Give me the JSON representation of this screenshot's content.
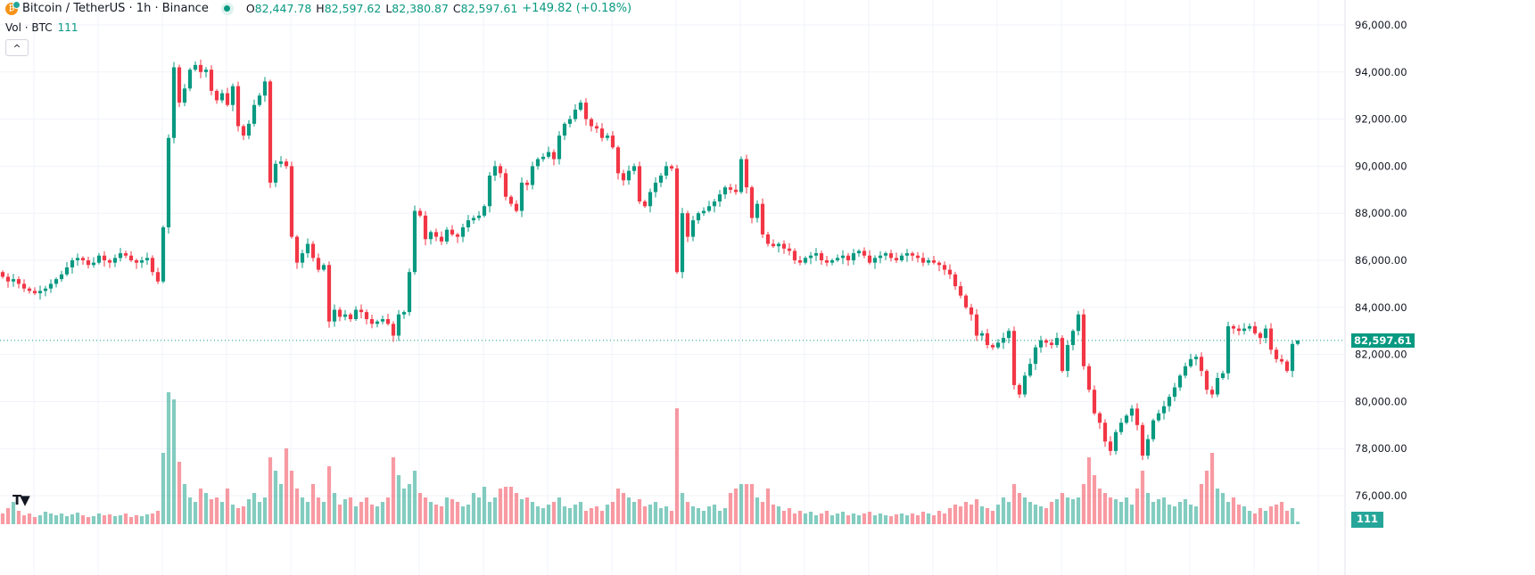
{
  "header": {
    "symbol_title": "Bitcoin / TetherUS · 1h · Binance",
    "symbol_icon": "bitcoin-icon",
    "open_label": "O",
    "open": "82,447.78",
    "high_label": "H",
    "high": "82,597.62",
    "low_label": "L",
    "low": "82,380.87",
    "close_label": "C",
    "close": "82,597.61",
    "change": "+149.82 (+0.18%)"
  },
  "volume_legend": {
    "label": "Vol · BTC",
    "value": "111"
  },
  "collapse_button": "^",
  "logo": "TV",
  "price_tag": "82,597.61",
  "volume_tag": "111",
  "colors": {
    "up": "#089981",
    "down": "#F23645",
    "grid": "#f0f3fa"
  },
  "chart_data": {
    "type": "candlestick",
    "interval": "1h",
    "ylim": [
      76000,
      96000
    ],
    "y_tick_labels": [
      "96,000.00",
      "94,000.00",
      "92,000.00",
      "90,000.00",
      "88,000.00",
      "86,000.00",
      "84,000.00",
      "82,000.00",
      "80,000.00",
      "78,000.00",
      "76,000.00"
    ],
    "y_ticks": [
      96000,
      94000,
      92000,
      90000,
      88000,
      86000,
      84000,
      82000,
      80000,
      78000,
      76000
    ],
    "grid": true,
    "first_open": 85500,
    "last_candle": {
      "open": 82447.78,
      "high": 82597.62,
      "low": 82380.87,
      "close": 82597.61
    },
    "closes": [
      85300,
      85100,
      85200,
      85000,
      84800,
      84700,
      84600,
      84700,
      84800,
      85000,
      85200,
      85400,
      85700,
      86000,
      86100,
      86000,
      85800,
      85900,
      86200,
      86000,
      85900,
      86100,
      86300,
      86200,
      86000,
      85900,
      86000,
      86100,
      85500,
      85100,
      87400,
      91200,
      94200,
      92700,
      93300,
      94100,
      94300,
      94000,
      94100,
      93200,
      92800,
      93100,
      92600,
      93400,
      91700,
      91300,
      91800,
      92600,
      93000,
      93600,
      89300,
      90100,
      90200,
      90000,
      87000,
      85900,
      86300,
      86700,
      86100,
      85600,
      85800,
      83400,
      83900,
      83600,
      83700,
      83500,
      83900,
      83800,
      83500,
      83300,
      83400,
      83500,
      83300,
      82800,
      83700,
      83800,
      85500,
      88100,
      87900,
      86900,
      87200,
      87000,
      86800,
      87300,
      87100,
      87000,
      87400,
      87700,
      87800,
      87900,
      88300,
      89600,
      90000,
      89700,
      88700,
      88400,
      88100,
      89300,
      89200,
      90000,
      90300,
      90400,
      90600,
      90300,
      91300,
      91800,
      92000,
      92400,
      92700,
      92000,
      91700,
      91600,
      91200,
      91300,
      90800,
      89700,
      89400,
      89800,
      90000,
      88500,
      88300,
      88900,
      89300,
      89600,
      90000,
      89900,
      85500,
      88000,
      87000,
      87700,
      88000,
      88100,
      88300,
      88500,
      88800,
      89100,
      89000,
      88900,
      90300,
      89100,
      87800,
      88400,
      87100,
      86700,
      86600,
      86700,
      86500,
      86400,
      86000,
      85900,
      86100,
      86200,
      86300,
      86000,
      85900,
      86000,
      86100,
      86200,
      86000,
      86300,
      86400,
      86200,
      85900,
      86100,
      86200,
      86300,
      86100,
      86000,
      86200,
      86300,
      86200,
      86100,
      85900,
      86000,
      85900,
      85800,
      85600,
      85400,
      84900,
      84500,
      84000,
      83700,
      82800,
      82900,
      82400,
      82300,
      82500,
      82700,
      83000,
      80700,
      80300,
      81100,
      81600,
      82300,
      82600,
      82500,
      82400,
      82700,
      81300,
      82400,
      83000,
      83700,
      81500,
      80500,
      79500,
      79100,
      78300,
      77900,
      78700,
      79100,
      79400,
      79700,
      79000,
      77700,
      78400,
      79200,
      79500,
      79800,
      80200,
      80600,
      81100,
      81500,
      81800,
      81900,
      81300,
      80500,
      80300,
      81000,
      81200,
      83200,
      83100,
      83000,
      83100,
      83200,
      82900,
      82700,
      83100,
      82200,
      81800,
      81700,
      81300,
      82447.78,
      82597.61
    ],
    "volumes": [
      480,
      720,
      1000,
      600,
      400,
      480,
      320,
      400,
      560,
      480,
      400,
      480,
      360,
      440,
      520,
      400,
      320,
      360,
      480,
      400,
      440,
      360,
      400,
      480,
      320,
      400,
      360,
      440,
      480,
      600,
      3200,
      5920,
      5600,
      2800,
      1800,
      1200,
      1000,
      1600,
      1400,
      1120,
      1200,
      1000,
      1600,
      880,
      720,
      800,
      1120,
      1400,
      1000,
      1200,
      3000,
      2400,
      1800,
      3400,
      2400,
      1600,
      1200,
      1000,
      1800,
      1200,
      1000,
      2600,
      1400,
      880,
      1120,
      1200,
      800,
      1000,
      1200,
      880,
      800,
      1000,
      1200,
      3000,
      2200,
      1600,
      1800,
      2400,
      1400,
      1200,
      1000,
      880,
      800,
      1200,
      1120,
      1000,
      800,
      880,
      1400,
      1200,
      1680,
      1000,
      1200,
      1600,
      1680,
      1680,
      1400,
      1120,
      1200,
      1000,
      800,
      720,
      880,
      1000,
      1200,
      800,
      720,
      880,
      1000,
      600,
      720,
      800,
      600,
      880,
      1000,
      1600,
      1400,
      1200,
      1000,
      1120,
      800,
      880,
      1000,
      720,
      800,
      600,
      5200,
      1400,
      1000,
      800,
      720,
      600,
      800,
      880,
      600,
      720,
      1400,
      1600,
      1800,
      1800,
      1800,
      1200,
      1000,
      1600,
      880,
      800,
      600,
      720,
      480,
      600,
      480,
      560,
      400,
      480,
      600,
      400,
      480,
      560,
      400,
      480,
      400,
      480,
      560,
      400,
      480,
      400,
      360,
      440,
      480,
      400,
      480,
      400,
      560,
      480,
      400,
      600,
      480,
      720,
      880,
      800,
      1000,
      880,
      1120,
      800,
      720,
      600,
      880,
      1200,
      1000,
      1800,
      1400,
      1200,
      1000,
      880,
      800,
      720,
      1000,
      1120,
      1400,
      1200,
      1120,
      1200,
      1800,
      3000,
      2200,
      1600,
      1400,
      1200,
      1120,
      1000,
      1200,
      880,
      1600,
      2400,
      1400,
      1000,
      1120,
      1200,
      880,
      800,
      1000,
      1120,
      880,
      800,
      1800,
      2400,
      3200,
      1600,
      1400,
      1000,
      1200,
      880,
      800,
      600,
      480,
      720,
      600,
      800,
      880,
      1000,
      600,
      720,
      111
    ]
  }
}
